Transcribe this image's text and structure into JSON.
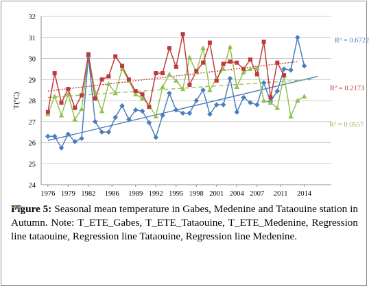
{
  "chart_data": {
    "type": "line",
    "ylabel": "T(ºC)",
    "ylim": [
      24,
      32
    ],
    "yticks": [
      "24",
      "25",
      "26",
      "27",
      "28",
      "29",
      "30",
      "31",
      "32"
    ],
    "xlim": [
      1975,
      2018
    ],
    "xtick_labels": [
      "1976",
      "1979",
      "1982",
      "1986",
      "1989",
      "1992",
      "1995",
      "1998",
      "2001",
      "2004",
      "2007",
      "2011",
      "2014"
    ],
    "xtick_values": [
      1976,
      1979,
      1982,
      1985.5,
      1989,
      1992,
      1995,
      1998,
      2001,
      2004,
      2007,
      2010.5,
      2014
    ],
    "x": [
      1976,
      1977,
      1978,
      1979,
      1980,
      1981,
      1982,
      1983,
      1984,
      1985,
      1986,
      1987,
      1988,
      1989,
      1990,
      1991,
      1992,
      1993,
      1994,
      1995,
      1996,
      1997,
      1998,
      1999,
      2000,
      2001,
      2002,
      2003,
      2004,
      2005,
      2006,
      2007,
      2008,
      2009,
      2010,
      2011,
      2012,
      2013,
      2014,
      2015,
      2016,
      2017
    ],
    "series": [
      {
        "name": "T_ETE_Gabes",
        "color": "#c0393b",
        "marker": "square",
        "line": "solid",
        "values": [
          27.45,
          29.3,
          27.9,
          28.55,
          27.65,
          28.25,
          30.2,
          28.1,
          29.0,
          29.15,
          30.1,
          29.65,
          29.0,
          28.45,
          28.3,
          27.7,
          29.3,
          29.3,
          30.5,
          29.6,
          31.15,
          28.75,
          29.4,
          29.8,
          30.75,
          28.95,
          29.75,
          29.85,
          29.8,
          29.5,
          29.95,
          29.25,
          30.8,
          28.15,
          29.8,
          29.2,
          null,
          null,
          null,
          null,
          null,
          null
        ]
      },
      {
        "name": "T_ETE_Tataouine",
        "color": "#92c050",
        "marker": "triangle",
        "line": "solid",
        "values": [
          27.35,
          28.2,
          27.3,
          28.3,
          27.1,
          27.6,
          30.2,
          28.4,
          27.5,
          28.8,
          28.35,
          29.5,
          28.95,
          28.3,
          28.1,
          27.8,
          27.25,
          28.65,
          29.25,
          28.95,
          28.55,
          30.05,
          29.35,
          30.5,
          28.5,
          29.05,
          29.5,
          30.55,
          28.65,
          29.35,
          29.5,
          29.55,
          28.0,
          27.9,
          27.65,
          29.2,
          27.25,
          28.0,
          28.2,
          null,
          null,
          null
        ]
      },
      {
        "name": "T_ETE_Medenine",
        "color": "#4a7ebb",
        "marker": "diamond",
        "line": "solid",
        "values": [
          26.3,
          26.3,
          25.75,
          26.4,
          26.05,
          26.2,
          30.1,
          27.0,
          26.5,
          26.5,
          27.2,
          27.75,
          27.1,
          27.55,
          27.5,
          26.95,
          26.25,
          27.3,
          28.35,
          27.55,
          27.4,
          27.4,
          28.0,
          28.5,
          27.35,
          27.8,
          27.8,
          29.05,
          27.45,
          28.15,
          27.9,
          27.8,
          28.85,
          27.95,
          28.45,
          29.5,
          29.45,
          31.0,
          29.65,
          null,
          null,
          null
        ]
      }
    ],
    "regression_lines": [
      {
        "name": "Regression line tataouine",
        "color": "#4a7ebb",
        "style": "solid",
        "r2_label": "R² = 0.6722",
        "from": [
          1976,
          26.1
        ],
        "to": [
          2016,
          29.15
        ]
      },
      {
        "name": "Regression line Tataouine",
        "color": "#c0393b",
        "style": "dotted",
        "r2_label": "R² = 0.2173",
        "from": [
          1976,
          28.45
        ],
        "to": [
          2013,
          29.85
        ]
      },
      {
        "name": "Regression line Medenine",
        "color": "#92c050",
        "style": "dashed",
        "r2_label": "R² = 0.0557",
        "from": [
          1976,
          28.15
        ],
        "to": [
          2015,
          29.0
        ]
      }
    ],
    "grid": "horizontal"
  },
  "caption": {
    "figure_label": "Figure 5:",
    "text": " Seasonal mean temperature in Gabes, Medenine and Tataouine station in Autumn. Note: ",
    "legend_items": [
      {
        "label": "T_ETE_Gabes,",
        "color": "#c0393b",
        "marker": "square"
      },
      {
        "label": "T_ETE_Tataouine,",
        "color": "#92c050",
        "marker": "triangle"
      },
      {
        "label": "T_ETE_Medenine,",
        "color": "#4a7ebb",
        "marker": "diamond"
      },
      {
        "label": "Regression line tataouine,",
        "color": "#4a7ebb",
        "marker": "line"
      },
      {
        "label": "Regression line Tataouine,",
        "color": "#c0393b",
        "marker": "dotted"
      },
      {
        "label": "Regression line Medenine.",
        "color": "#92c050",
        "marker": "dashed"
      }
    ]
  }
}
